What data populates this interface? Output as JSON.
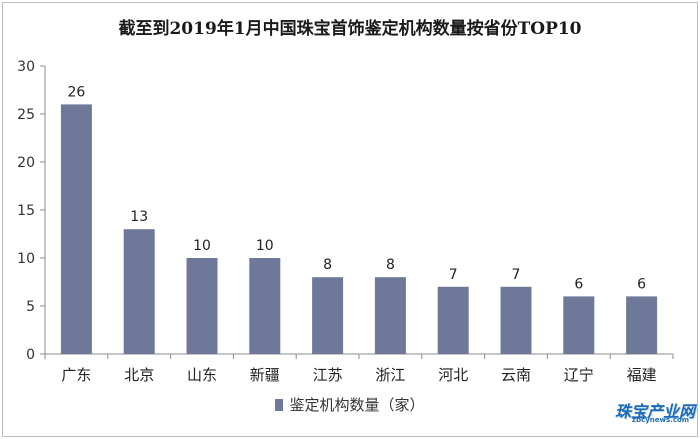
{
  "chart_data": {
    "type": "bar",
    "title": "截至到2019年1月中国珠宝首饰鉴定机构数量按省份TOP10",
    "categories": [
      "广东",
      "北京",
      "山东",
      "新疆",
      "江苏",
      "浙江",
      "河北",
      "云南",
      "辽宁",
      "福建"
    ],
    "series": [
      {
        "name": "鉴定机构数量（家）",
        "values": [
          26,
          13,
          10,
          10,
          8,
          8,
          7,
          7,
          6,
          6
        ]
      }
    ],
    "yticks": [
      "0",
      "5",
      "10",
      "15",
      "20",
      "25",
      "30"
    ],
    "ylim": [
      0,
      30
    ],
    "grid": false,
    "legend": "bottom",
    "colors": {
      "bar": "#6e7898",
      "axis": "#8c8c8c"
    }
  },
  "watermark": {
    "logo_text": "珠宝产业网",
    "url": "zbcynews.com"
  }
}
